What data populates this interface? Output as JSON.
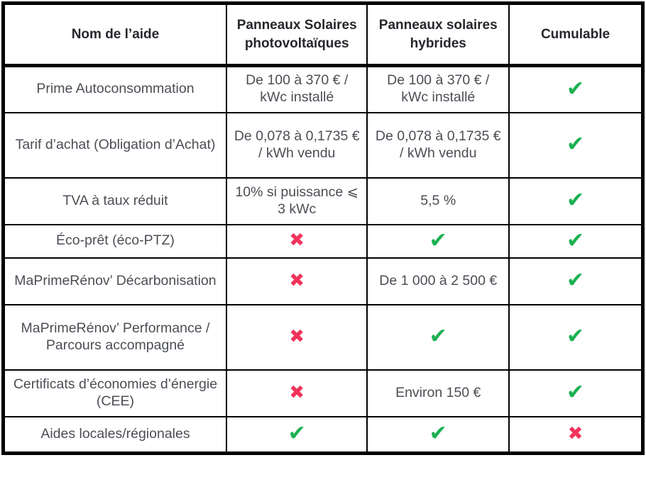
{
  "table": {
    "columns": [
      {
        "label": "Nom de l’aide"
      },
      {
        "label": "Panneaux Solaires photovoltaïques"
      },
      {
        "label": "Panneaux solaires hybrides"
      },
      {
        "label": "Cumulable"
      }
    ],
    "rows": [
      {
        "cells": [
          {
            "type": "text",
            "value": "Prime Autoconsommation"
          },
          {
            "type": "text",
            "value": "De 100 à 370 € / kWc installé"
          },
          {
            "type": "text",
            "value": "De 100 à 370 € / kWc installé"
          },
          {
            "type": "check"
          }
        ]
      },
      {
        "cells": [
          {
            "type": "text",
            "value": "Tarif d’achat (Obligation d’Achat)"
          },
          {
            "type": "text",
            "value": "De 0,078 à 0,1735 € / kWh vendu"
          },
          {
            "type": "text",
            "value": "De 0,078 à 0,1735 € / kWh vendu"
          },
          {
            "type": "check"
          }
        ]
      },
      {
        "cells": [
          {
            "type": "text",
            "value": "TVA à taux réduit"
          },
          {
            "type": "text",
            "value": "10% si puissance ⩽ 3 kWc"
          },
          {
            "type": "text",
            "value": "5,5 %"
          },
          {
            "type": "check"
          }
        ]
      },
      {
        "cells": [
          {
            "type": "text",
            "value": "Éco-prêt (éco-PTZ)"
          },
          {
            "type": "cross"
          },
          {
            "type": "check"
          },
          {
            "type": "check"
          }
        ]
      },
      {
        "cells": [
          {
            "type": "text",
            "value": "MaPrimeRénov’ Décarbonisation"
          },
          {
            "type": "cross"
          },
          {
            "type": "text",
            "value": "De 1 000 à 2 500 €"
          },
          {
            "type": "check"
          }
        ]
      },
      {
        "cells": [
          {
            "type": "text",
            "value": "MaPrimeRénov’ Performance / Parcours accompagné"
          },
          {
            "type": "cross"
          },
          {
            "type": "check"
          },
          {
            "type": "check"
          }
        ]
      },
      {
        "cells": [
          {
            "type": "text",
            "value": "Certificats d’économies d’énergie (CEE)"
          },
          {
            "type": "cross"
          },
          {
            "type": "text",
            "value": "Environ 150 €"
          },
          {
            "type": "check"
          }
        ]
      },
      {
        "cells": [
          {
            "type": "text",
            "value": "Aides locales/régionales"
          },
          {
            "type": "check"
          },
          {
            "type": "check"
          },
          {
            "type": "cross"
          }
        ]
      }
    ]
  },
  "icons": {
    "check": "✔",
    "cross": "✖"
  },
  "colors": {
    "check": "#1cb152",
    "cross": "#f1335b",
    "border": "#000000",
    "header_text": "#26272c",
    "body_text": "#4b4e55"
  }
}
